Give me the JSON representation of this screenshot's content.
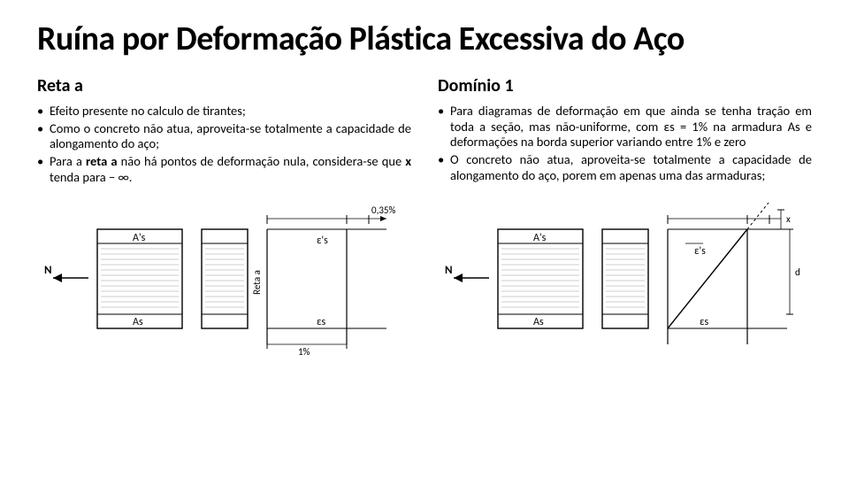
{
  "title": "Ruína por Deformação Plástica Excessiva do Aço",
  "left": {
    "heading": "Reta a",
    "bullets": [
      {
        "html": "Efeito presente no calculo de tirantes;"
      },
      {
        "html": "Como o concreto não atua, aproveita-se totalmente a capacidade de alongamento do aço;"
      },
      {
        "html": "Para a <span class='b'>reta a</span> não há pontos de deformação nula, considera-se que <span class='b'>x</span> tenda para − ∞."
      }
    ]
  },
  "right": {
    "heading": "Domínio 1",
    "bullets": [
      {
        "html": "Para diagramas de deformação em que ainda se tenha tração em toda a seção, mas não-uniforme, com εs = 1% na armadura As e deformações na borda superior variando entre 1% e zero"
      },
      {
        "html": "O concreto não atua, aproveita-se totalmente a capacidade de alongamento do aço, porem em apenas uma das armaduras;"
      }
    ]
  },
  "fig": {
    "stroke": "#000000",
    "fill_hatch": "#e8e8e8",
    "fontsize": 11,
    "labels": {
      "N": "N",
      "As_top": "A's",
      "As_bot": "As",
      "reta_a": "Reta a",
      "one_pct": "1%",
      "eps_s_top": "ε's",
      "eps_s_bot": "εs",
      "top_pct": "0,35%",
      "x": "x",
      "d": "d"
    }
  }
}
